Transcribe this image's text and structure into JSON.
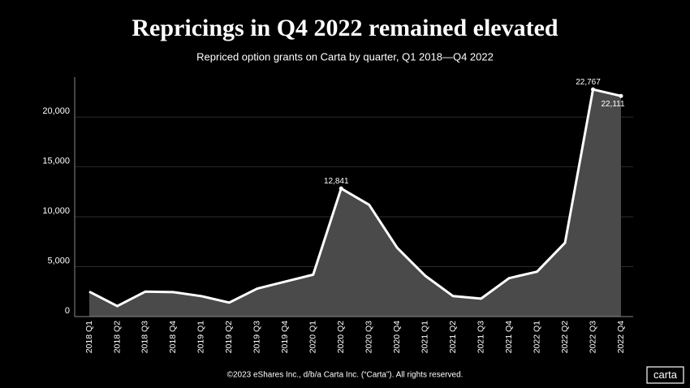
{
  "chart_data": {
    "type": "area-line",
    "title": "Repricings in Q4 2022 remained elevated",
    "subtitle": "Repriced option grants on Carta by quarter, Q1 2018—Q4 2022",
    "categories": [
      "2018 Q1",
      "2018 Q2",
      "2018 Q3",
      "2018 Q4",
      "2019 Q1",
      "2019 Q2",
      "2019 Q3",
      "2019 Q4",
      "2020 Q1",
      "2020 Q2",
      "2020 Q3",
      "2020 Q4",
      "2021 Q1",
      "2021 Q2",
      "2021 Q3",
      "2021 Q4",
      "2022 Q1",
      "2022 Q2",
      "2022 Q3",
      "2022 Q4"
    ],
    "values": [
      2500,
      1050,
      2500,
      2450,
      2050,
      1400,
      2800,
      3500,
      4200,
      12841,
      11200,
      6900,
      4100,
      2050,
      1800,
      3850,
      4500,
      7400,
      22767,
      22111
    ],
    "value_labels": [
      null,
      null,
      null,
      null,
      null,
      null,
      null,
      null,
      null,
      "12,841",
      null,
      null,
      null,
      null,
      null,
      null,
      null,
      null,
      "22,767",
      "22,111"
    ],
    "color": "#ffffff",
    "fill": "#4a4a4a",
    "ylim": [
      0,
      24000
    ],
    "yticks": [
      0,
      {
        "value": 5000,
        "label": "5,000"
      },
      {
        "value": 10000,
        "label": "10,000"
      },
      {
        "value": 15000,
        "label": "15,000"
      },
      {
        "value": 20000,
        "label": "20,000"
      }
    ],
    "grid": true,
    "footer": "©2023 eShares Inc., d/b/a Carta Inc. (“Carta”). All rights reserved.",
    "logo": "carta"
  }
}
